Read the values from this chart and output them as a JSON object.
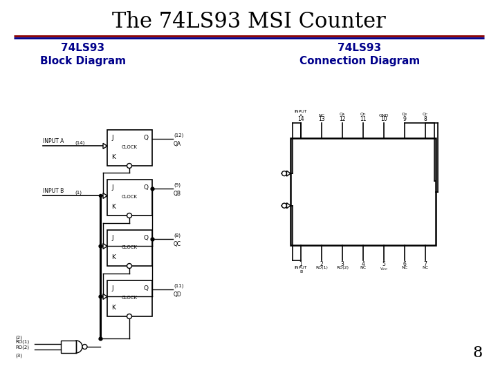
{
  "title": "The 74LS93 MSI Counter",
  "title_fontsize": 22,
  "title_color": "#000000",
  "title_font": "serif",
  "line_color_top": "#8B0000",
  "line_color_bottom": "#00008B",
  "left_subtitle": "74LS93\nBlock Diagram",
  "right_subtitle": "74LS93\nConnection Diagram",
  "subtitle_color": "#00008B",
  "subtitle_fontsize": 11,
  "bg_color": "#ffffff",
  "page_number": "8",
  "lc": "#000000"
}
